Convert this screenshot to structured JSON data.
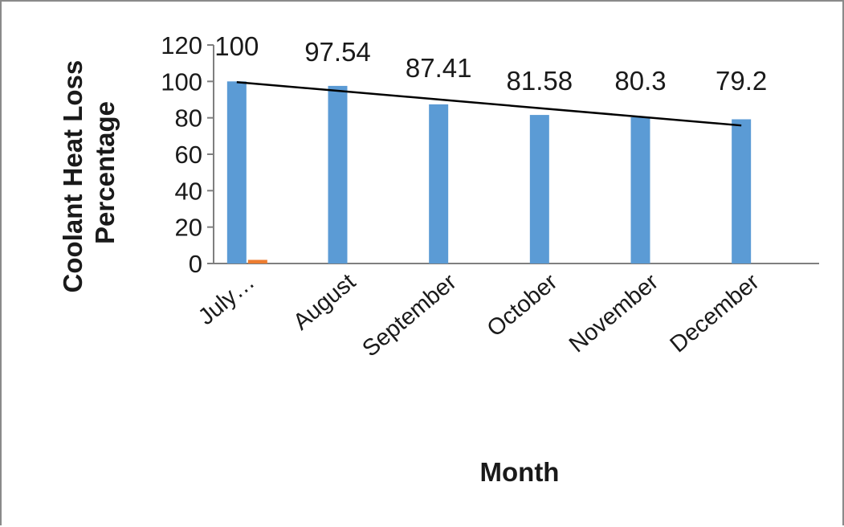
{
  "chart_data": {
    "type": "bar",
    "categories": [
      "July…",
      "August",
      "September",
      "October",
      "November",
      "December"
    ],
    "series": [
      {
        "values": [
          100,
          97.54,
          87.41,
          81.58,
          80.3,
          79.2
        ],
        "color": "#5b9bd5"
      },
      {
        "values": [
          2,
          null,
          null,
          null,
          null,
          null
        ],
        "color": "#ed7d31"
      }
    ],
    "data_labels": [
      "100",
      "97.54",
      "87.41",
      "81.58",
      "80.3",
      "79.2"
    ],
    "trendline": {
      "type": "linear",
      "start": 99.6,
      "end": 75.8,
      "color": "#000000"
    },
    "y_ticks": [
      "0",
      "20",
      "40",
      "60",
      "80",
      "100",
      "120"
    ],
    "ylim": [
      0,
      120
    ],
    "xlabel": "Month",
    "ylabel": "Coolant Heat Loss Percentage",
    "grid": false,
    "legend": "none"
  }
}
